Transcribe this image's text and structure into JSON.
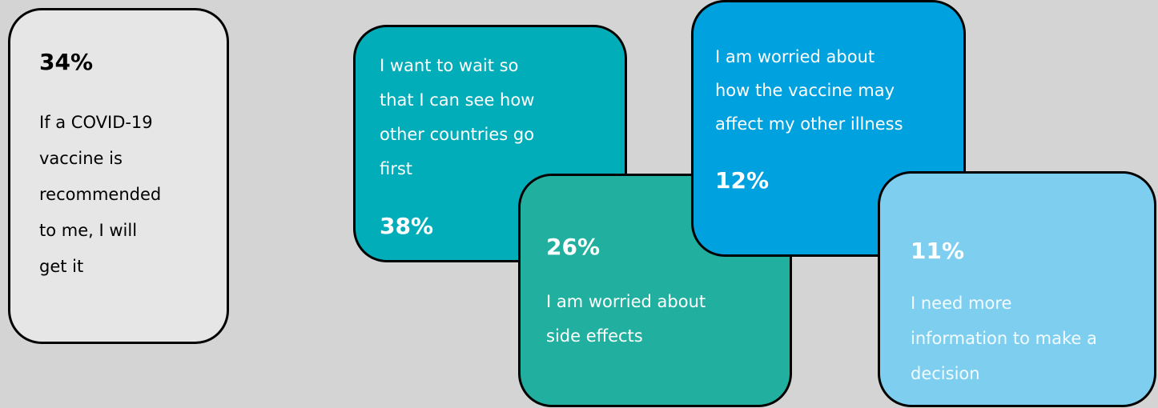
{
  "cards": [
    {
      "percent": "34%",
      "text_lines": [
        "If a COVID-19",
        "vaccine is",
        "recommended",
        "to me, I will",
        "get it"
      ]
    },
    {
      "percent": "38%",
      "text_lines": [
        "I want to wait so",
        "that I can see how",
        "other countries go",
        "first"
      ]
    },
    {
      "percent": "26%",
      "text_lines": [
        "I am worried about",
        "side effects"
      ]
    },
    {
      "percent": "12%",
      "text_lines": [
        "I am worried about",
        "how the vaccine may",
        "affect my other illness"
      ]
    },
    {
      "percent": "11%",
      "text_lines": [
        "I need more",
        "information to make a",
        "decision"
      ]
    }
  ]
}
